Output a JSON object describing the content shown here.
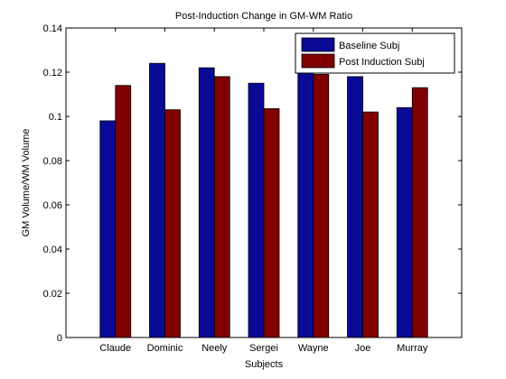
{
  "chart_data": {
    "type": "bar",
    "title": "Post-Induction Change in GM-WM Ratio",
    "xlabel": "Subjects",
    "ylabel": "GM Volume/WM Volume",
    "ylim": [
      0,
      0.14
    ],
    "yticks": [
      0,
      0.02,
      0.04,
      0.06,
      0.08,
      0.1,
      0.12,
      0.14
    ],
    "ytick_labels": [
      "0",
      "0.02",
      "0.04",
      "0.06",
      "0.08",
      "0.1",
      "0.12",
      "0.14"
    ],
    "categories": [
      "Claude",
      "Dominic",
      "Neely",
      "Sergei",
      "Wayne",
      "Joe",
      "Murray"
    ],
    "series": [
      {
        "name": "Baseline Subj",
        "color": "#0a0a96",
        "values": [
          0.098,
          0.124,
          0.122,
          0.115,
          0.12,
          0.118,
          0.104
        ]
      },
      {
        "name": "Post Induction Subj",
        "color": "#800000",
        "values": [
          0.114,
          0.103,
          0.118,
          0.1035,
          0.119,
          0.102,
          0.113
        ]
      }
    ],
    "grid": false,
    "legend_position": "top-right"
  }
}
